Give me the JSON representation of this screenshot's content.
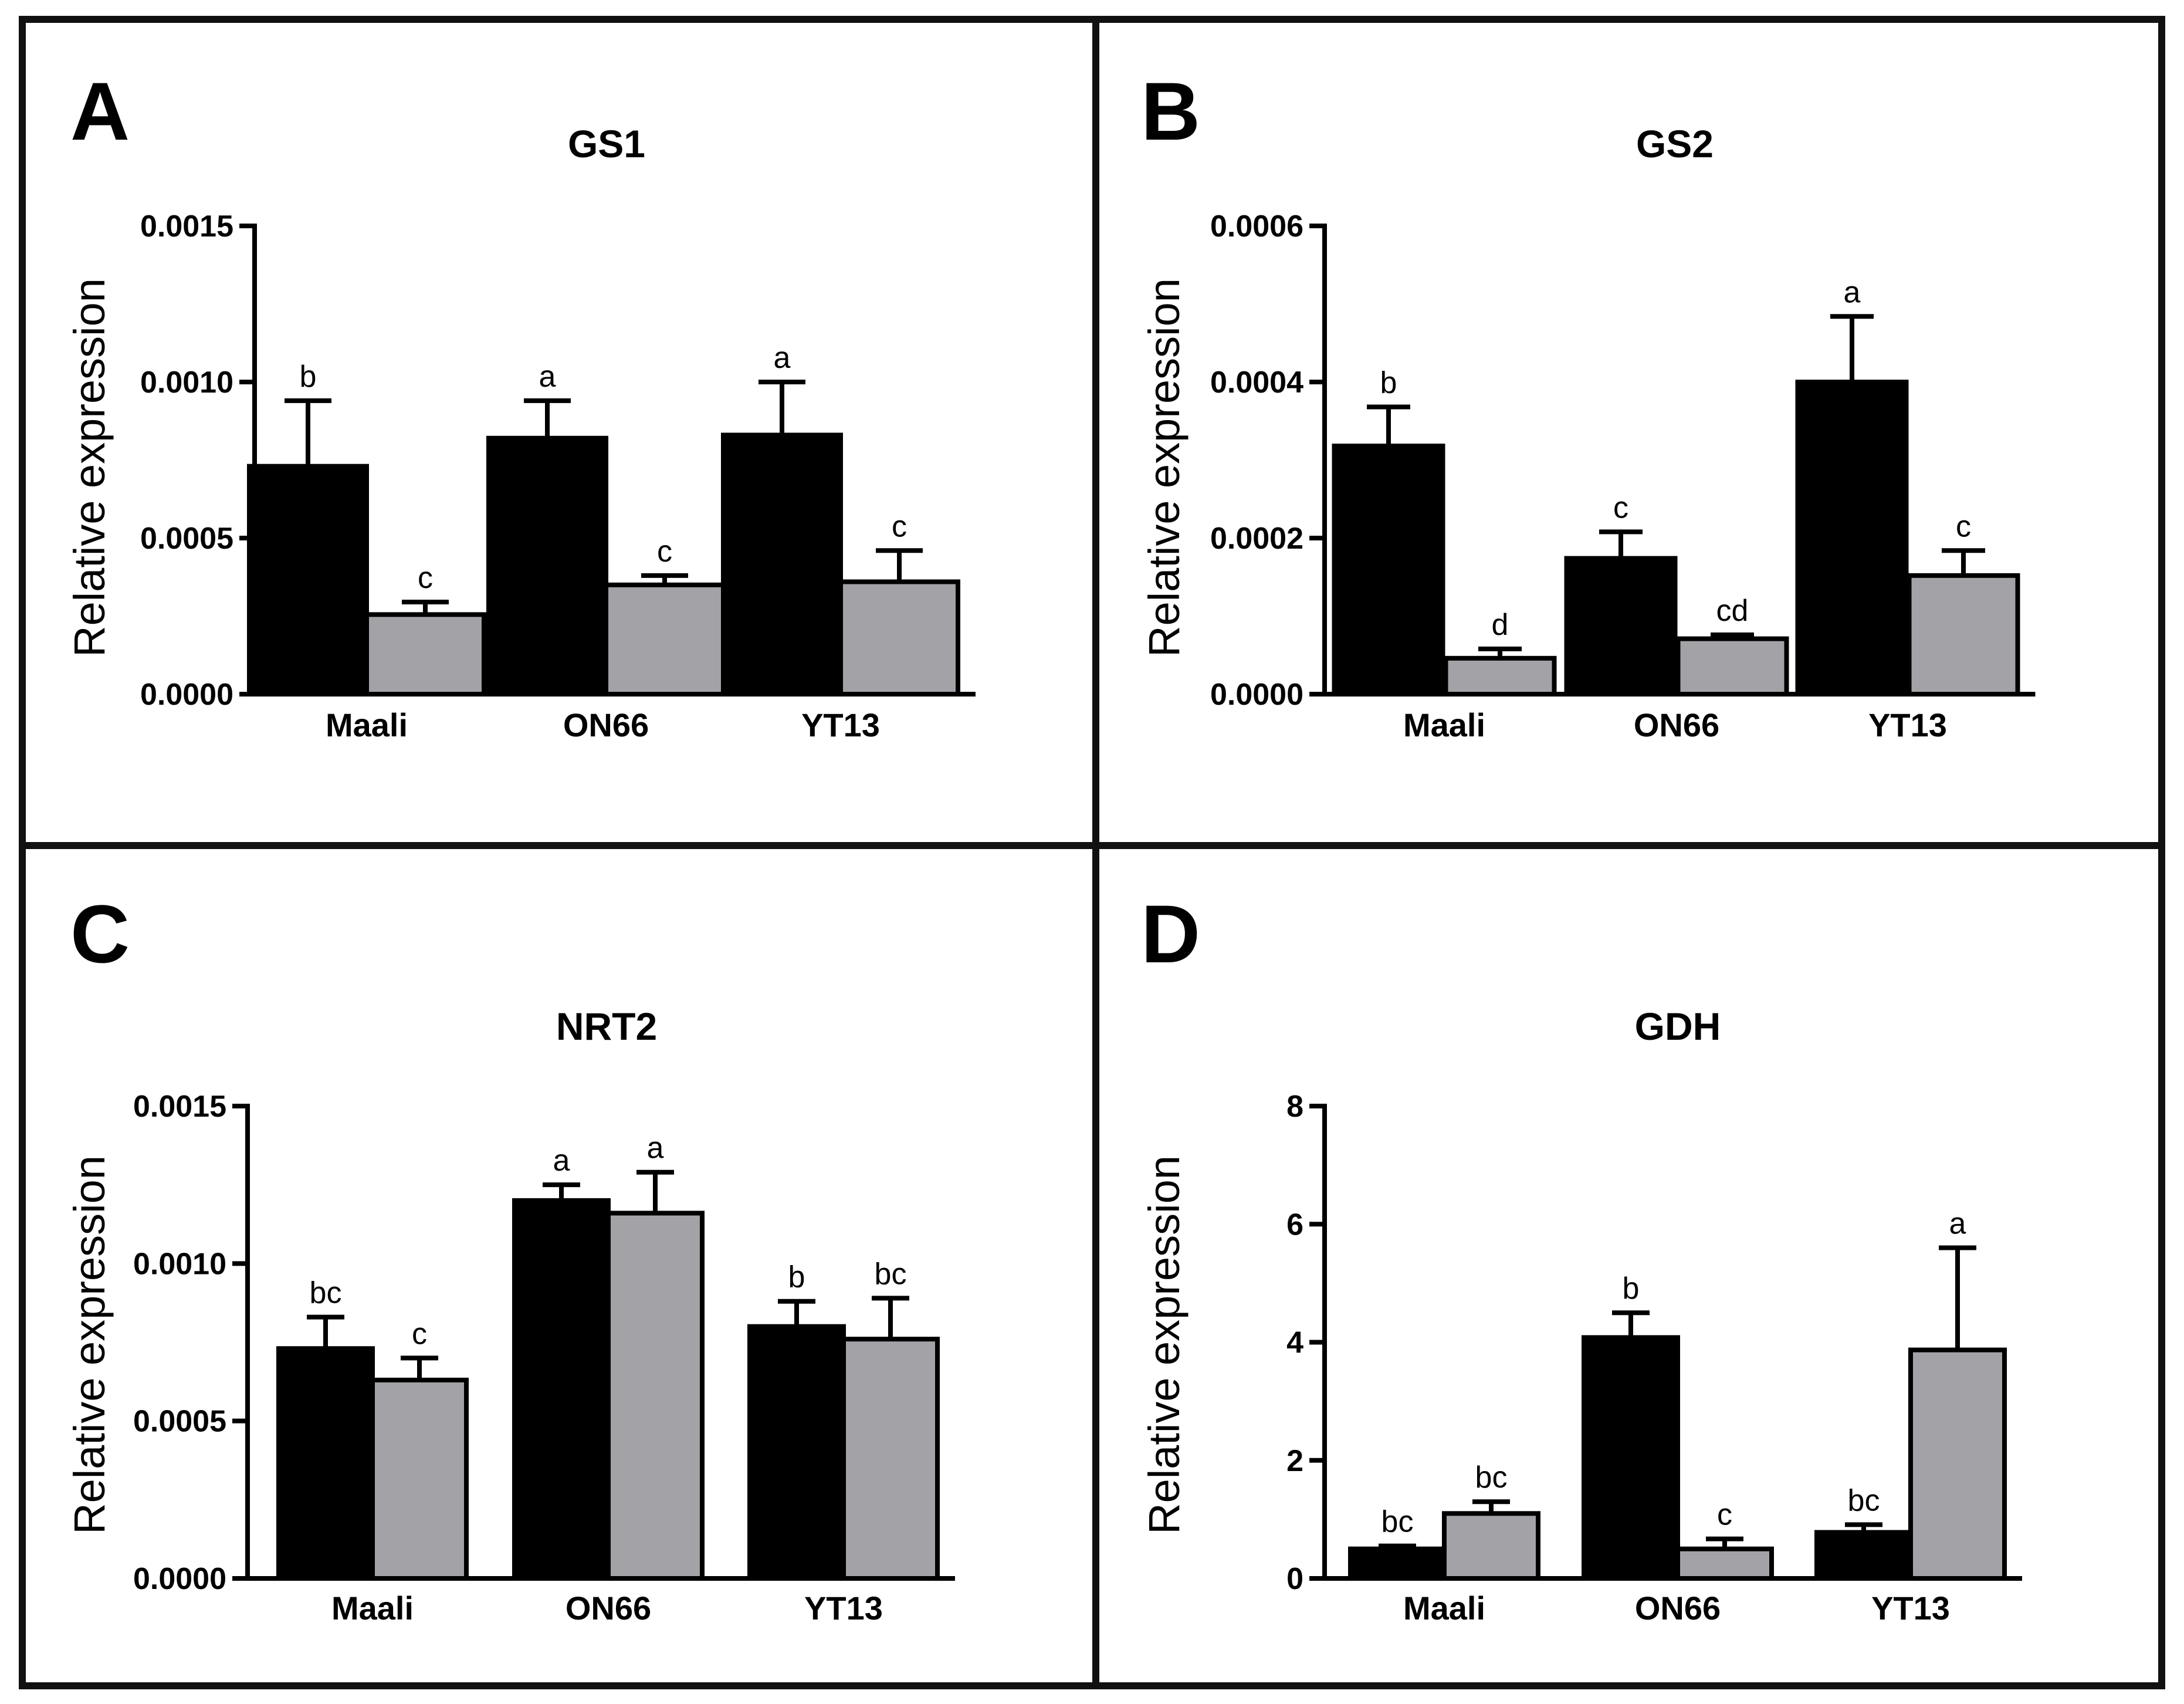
{
  "figure": {
    "panels": [
      {
        "letter": "A",
        "title": "GS1",
        "ylabel": "Relative expression"
      },
      {
        "letter": "B",
        "title": "GS2",
        "ylabel": "Relative expression"
      },
      {
        "letter": "C",
        "title": "NRT2",
        "ylabel": "Relative expression"
      },
      {
        "letter": "D",
        "title": "GDH",
        "ylabel": "Relative expression"
      }
    ]
  },
  "colors": {
    "series1": "#000000",
    "series2": "#a3a2a7",
    "frame": "#111111"
  },
  "chart_data": [
    {
      "type": "bar",
      "title": "GS1",
      "xlabel": "",
      "ylabel": "Relative expression",
      "categories": [
        "Maali",
        "ON66",
        "YT13"
      ],
      "ylim": [
        0,
        0.0015
      ],
      "yticks": [
        0,
        0.0005,
        0.001,
        0.0015
      ],
      "ytick_labels": [
        "0.0000",
        "0.0005",
        "0.0010",
        "0.0015"
      ],
      "series": [
        {
          "name": "series 1 (black)",
          "values": [
            0.00073,
            0.00082,
            0.00083
          ],
          "errors": [
            0.00021,
            0.00012,
            0.00017
          ],
          "labels": [
            "b",
            "a",
            "a"
          ]
        },
        {
          "name": "series 2 (grey)",
          "values": [
            0.000255,
            0.00035,
            0.00036
          ],
          "errors": [
            4e-05,
            3e-05,
            0.0001
          ],
          "labels": [
            "c",
            "c",
            "c"
          ]
        }
      ]
    },
    {
      "type": "bar",
      "title": "GS2",
      "xlabel": "",
      "ylabel": "Relative expression",
      "categories": [
        "Maali",
        "ON66",
        "YT13"
      ],
      "ylim": [
        0,
        0.0006
      ],
      "yticks": [
        0,
        0.0002,
        0.0004,
        0.0006
      ],
      "ytick_labels": [
        "0.0000",
        "0.0002",
        "0.0004",
        "0.0006"
      ],
      "series": [
        {
          "name": "series 1 (black)",
          "values": [
            0.000318,
            0.000174,
            0.0004
          ],
          "errors": [
            5e-05,
            3.4e-05,
            8.4e-05
          ],
          "labels": [
            "b",
            "c",
            "a"
          ]
        },
        {
          "name": "series 2 (grey)",
          "values": [
            4.6e-05,
            7.1e-05,
            0.000152
          ],
          "errors": [
            1.2e-05,
            5e-06,
            3.2e-05
          ],
          "labels": [
            "d",
            "cd",
            "c"
          ]
        }
      ]
    },
    {
      "type": "bar",
      "title": "NRT2",
      "xlabel": "",
      "ylabel": "Relative expression",
      "categories": [
        "Maali",
        "ON66",
        "YT13"
      ],
      "ylim": [
        0,
        0.0015
      ],
      "yticks": [
        0,
        0.0005,
        0.001,
        0.0015
      ],
      "ytick_labels": [
        "0.0000",
        "0.0005",
        "0.0010",
        "0.0015"
      ],
      "series": [
        {
          "name": "series 1 (black)",
          "values": [
            0.00073,
            0.0012,
            0.0008
          ],
          "errors": [
            0.0001,
            5e-05,
            8e-05
          ],
          "labels": [
            "bc",
            "a",
            "b"
          ]
        },
        {
          "name": "series 2 (grey)",
          "values": [
            0.00063,
            0.00116,
            0.00076
          ],
          "errors": [
            7e-05,
            0.00013,
            0.00013
          ],
          "labels": [
            "c",
            "a",
            "bc"
          ]
        }
      ]
    },
    {
      "type": "bar",
      "title": "GDH",
      "xlabel": "",
      "ylabel": "Relative expression",
      "categories": [
        "Maali",
        "ON66",
        "YT13"
      ],
      "ylim": [
        0,
        8
      ],
      "yticks": [
        0,
        2,
        4,
        6,
        8
      ],
      "ytick_labels": [
        "0",
        "2",
        "4",
        "6",
        "8"
      ],
      "series": [
        {
          "name": "series 1 (black)",
          "values": [
            0.5,
            4.08,
            0.78
          ],
          "errors": [
            0.05,
            0.42,
            0.13
          ],
          "labels": [
            "bc",
            "b",
            "bc"
          ]
        },
        {
          "name": "series 2 (grey)",
          "values": [
            1.1,
            0.5,
            3.87
          ],
          "errors": [
            0.2,
            0.17,
            1.73
          ],
          "labels": [
            "bc",
            "c",
            "a"
          ]
        }
      ]
    }
  ]
}
